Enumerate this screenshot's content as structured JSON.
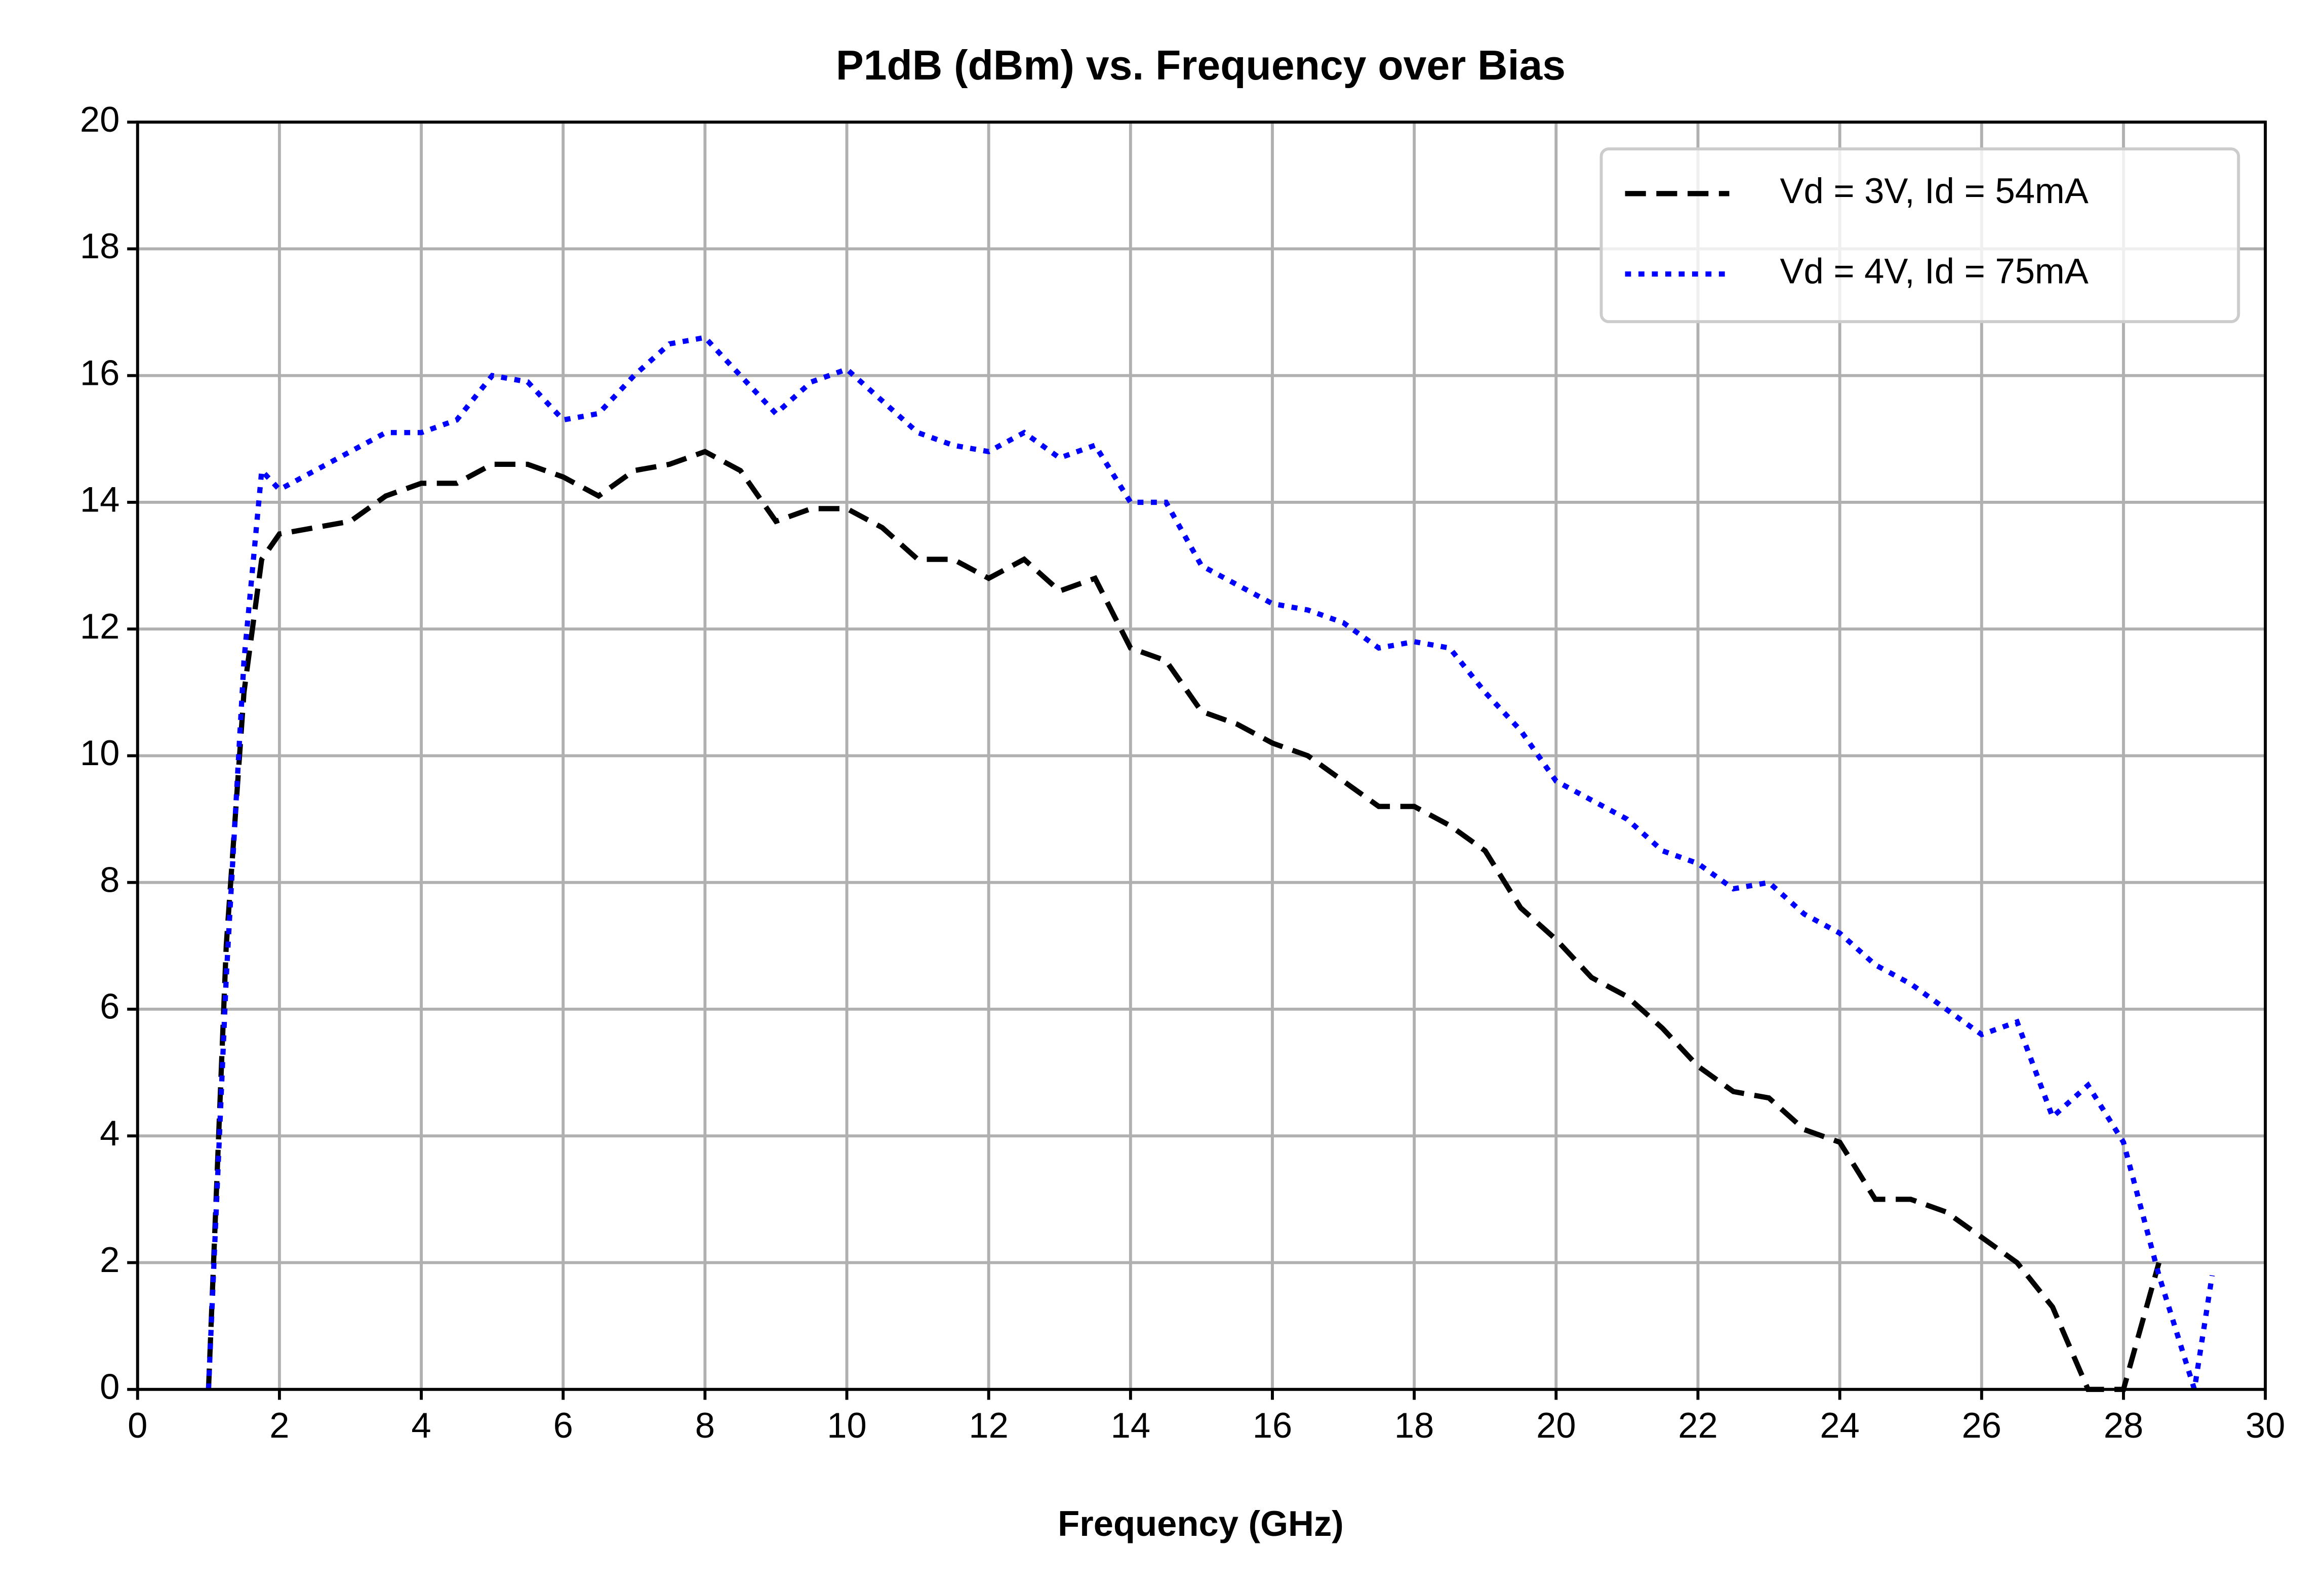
{
  "chart_data": {
    "type": "line",
    "title": "P1dB (dBm) vs. Frequency over Bias",
    "xlabel": "Frequency (GHz)",
    "x": [
      1.0,
      1.25,
      1.5,
      1.75,
      2.0,
      2.5,
      3.0,
      3.5,
      4.0,
      4.5,
      5.0,
      5.5,
      6.0,
      6.5,
      7.0,
      7.5,
      8.0,
      8.5,
      9.0,
      9.5,
      10.0,
      10.5,
      11.0,
      11.5,
      12.0,
      12.5,
      13.0,
      13.5,
      14.0,
      14.5,
      15.0,
      15.5,
      16.0,
      16.5,
      17.0,
      17.5,
      18.0,
      18.5,
      19.0,
      19.5,
      20.0,
      20.5,
      21.0,
      21.5,
      22.0,
      22.5,
      23.0,
      23.5,
      24.0,
      24.5,
      25.0,
      25.5,
      26.0,
      26.5,
      27.0,
      27.5,
      28.0,
      28.5,
      29.0,
      29.25
    ],
    "series": [
      {
        "name": "Vd = 3V, Id = 54mA",
        "color": "#000000",
        "dash": "dashed",
        "values": [
          0,
          7,
          11,
          13.1,
          13.5,
          13.6,
          13.7,
          14.1,
          14.3,
          14.3,
          14.6,
          14.6,
          14.4,
          14.1,
          14.5,
          14.6,
          14.8,
          14.5,
          13.7,
          13.9,
          13.9,
          13.6,
          13.1,
          13.1,
          12.8,
          13.1,
          12.6,
          12.8,
          11.7,
          11.5,
          10.7,
          10.5,
          10.2,
          10.0,
          9.6,
          9.2,
          9.2,
          8.9,
          8.5,
          7.6,
          7.1,
          6.5,
          6.2,
          5.7,
          5.1,
          4.7,
          4.6,
          4.1,
          3.9,
          3.0,
          3.0,
          2.8,
          2.4,
          2.0,
          1.3,
          0,
          0,
          2.0,
          null,
          null
        ]
      },
      {
        "name": "Vd = 4V, Id = 75mA",
        "color": "#0000ff",
        "dash": "dotted",
        "values": [
          0,
          6.5,
          11.5,
          14.5,
          14.2,
          14.5,
          14.8,
          15.1,
          15.1,
          15.3,
          16.0,
          15.9,
          15.3,
          15.4,
          16.0,
          16.5,
          16.6,
          16.0,
          15.4,
          15.9,
          16.1,
          15.6,
          15.1,
          14.9,
          14.8,
          15.1,
          14.7,
          14.9,
          14.0,
          14.0,
          13.0,
          12.7,
          12.4,
          12.3,
          12.1,
          11.7,
          11.8,
          11.7,
          11.0,
          10.4,
          9.6,
          9.3,
          9.0,
          8.5,
          8.3,
          7.9,
          8.0,
          7.5,
          7.2,
          6.7,
          6.4,
          6.0,
          5.6,
          5.8,
          4.3,
          4.8,
          3.9,
          1.8,
          0,
          1.8
        ]
      }
    ],
    "xlim": [
      0,
      30
    ],
    "xticks": [
      0,
      2,
      4,
      6,
      8,
      10,
      12,
      14,
      16,
      18,
      20,
      22,
      24,
      26,
      28,
      30
    ],
    "ylim": [
      0,
      20
    ],
    "yticks": [
      0,
      2,
      4,
      6,
      8,
      10,
      12,
      14,
      16,
      18,
      20
    ],
    "grid": true,
    "legend": "upper right"
  }
}
